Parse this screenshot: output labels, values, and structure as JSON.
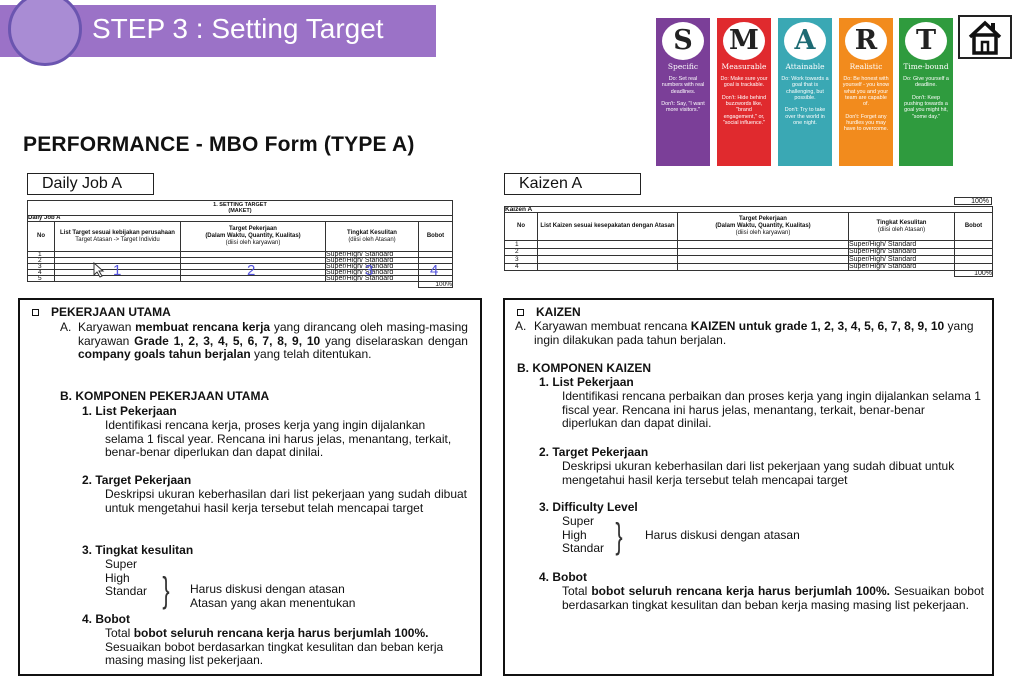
{
  "header": {
    "step_title": "STEP 3 : Setting Target",
    "main_title": "PERFORMANCE - MBO Form (TYPE A)"
  },
  "smart": [
    {
      "letter": "S",
      "word": "Specific",
      "color": "#7b3f98",
      "text": "Do: Set real numbers with real deadlines.\n\nDon't: Say, \"I want more visitors.\""
    },
    {
      "letter": "M",
      "word": "Measurable",
      "color": "#e02a2e",
      "text": "Do: Make sure your goal is trackable.\n\nDon't: Hide behind buzzwords like, \"brand engagement,\" or, \"social influence.\""
    },
    {
      "letter": "A",
      "word": "Attainable",
      "color": "#3aa8b4",
      "text": "Do: Work towards a goal that is challenging, but possible.\n\nDon't: Try to take over the world in one night."
    },
    {
      "letter": "R",
      "word": "Realistic",
      "color": "#f28b1d",
      "text": "Do: Be honest with yourself - you know what you and your team are capable of.\n\nDon't: Forget any hurdles you may have to overcome."
    },
    {
      "letter": "T",
      "word": "Time-bound",
      "color": "#2f9b3e",
      "text": "Do: Give yourself a deadline.\n\nDon't: Keep pushing towards a goal you might hit, \"some day.\""
    }
  ],
  "icons": {
    "home": "home-icon",
    "bullet": "checkbox-bullet-icon"
  },
  "daily": {
    "label": "Daily Job A",
    "table_title": "1. SETTING TARGET",
    "table_subtitle": "(MAKET)",
    "section": "Daily Job A",
    "headers": {
      "no": "No",
      "list": "List Target sesuai kebijakan perusahaan",
      "list_sub": "Target Atasan -> Target Individu",
      "target": "Target Pekerjaan",
      "target_sub": "(Dalam Waktu, Quantity, Kualitas)",
      "target_sub2": "(diisi oleh karyawan)",
      "level": "Tingkat Kesulitan",
      "level_sub": "(diisi oleh Atasan)",
      "weight": "Bobot"
    },
    "rows": [
      "1",
      "2",
      "3",
      "4",
      "5"
    ],
    "level_text": "Super/High/ Standard",
    "total": "100%",
    "overlay_numbers": [
      "1",
      "2",
      "3",
      "4"
    ]
  },
  "kaizen": {
    "label": "Kaizen A",
    "top_total": "100%",
    "section": "Kaizen A",
    "headers": {
      "no": "No",
      "list": "List Kaizen sesuai kesepakatan dengan Atasan",
      "target": "Target Pekerjaan",
      "target_sub": "(Dalam Waktu, Quantity, Kualitas)",
      "target_sub2": "(diisi oleh karyawan)",
      "level": "Tingkat Kesulitan",
      "level_sub": "(diisi oleh Atasan)",
      "weight": "Bobot"
    },
    "rows": [
      "1",
      "2",
      "3",
      "4"
    ],
    "level_text": "Super/High/ Standard",
    "total": "100%"
  },
  "left_box": {
    "title": "PEKERJAAN UTAMA",
    "a_prefix": "A.",
    "a_parts": [
      "Karyawan ",
      "membuat rencana kerja",
      " yang dirancang oleh masing-masing karyawan ",
      "Grade 1, 2, 3, 4, 5, 6, 7, 8, 9, 10",
      " yang diselaraskan dengan ",
      "company goals tahun berjalan",
      " yang telah ditentukan."
    ],
    "b_title": "B.  KOMPONEN PEKERJAAN UTAMA",
    "items": [
      {
        "title": "1.  List Pekerjaan",
        "text": "Identifikasi rencana kerja, proses kerja yang ingin dijalankan selama 1 fiscal year. Rencana ini harus jelas, menantang, terkait, benar-benar diperlukan dan dapat dinilai."
      },
      {
        "title": "2.  Target Pekerjaan",
        "text": "Deskripsi ukuran keberhasilan dari list pekerjaan yang sudah dibuat untuk mengetahui hasil kerja tersebut telah mencapai target"
      },
      {
        "title": "3.  Tingkat kesulitan",
        "levels": [
          "Super",
          "High",
          "Standar"
        ],
        "note1": "Harus diskusi dengan atasan",
        "note2": "Atasan yang akan menentukan"
      },
      {
        "title": "4.  Bobot",
        "parts": [
          "Total ",
          "bobot seluruh rencana kerja harus berjumlah 100%.",
          "\nSesuaikan bobot berdasarkan tingkat kesulitan dan beban kerja masing masing list pekerjaan."
        ]
      }
    ]
  },
  "right_box": {
    "title": "KAIZEN",
    "a_prefix": "A.",
    "a_parts": [
      "Karyawan membuat rencana ",
      "KAIZEN untuk grade 1, 2, 3, 4, 5, 6, 7, 8, 9, 10",
      " yang ingin dilakukan pada tahun berjalan."
    ],
    "b_title": "B.  KOMPONEN KAIZEN",
    "items": [
      {
        "title": "1.  List Pekerjaan",
        "text": "Identifikasi rencana perbaikan dan proses kerja yang ingin dijalankan selama 1 fiscal year. Rencana ini harus jelas, menantang, terkait, benar-benar diperlukan dan dapat dinilai."
      },
      {
        "title": "2.  Target Pekerjaan",
        "text": "Deskripsi ukuran keberhasilan dari list pekerjaan yang sudah dibuat untuk mengetahui hasil kerja tersebut telah mencapai target"
      },
      {
        "title": "3.  Difficulty Level",
        "levels": [
          "Super",
          "High",
          "Standar"
        ],
        "note1": "Harus diskusi dengan atasan"
      },
      {
        "title": "4.  Bobot",
        "parts": [
          "Total ",
          "bobot seluruh rencana kerja harus berjumlah 100%.",
          " Sesuaikan bobot berdasarkan tingkat kesulitan dan beban kerja masing masing list pekerjaan."
        ]
      }
    ]
  }
}
